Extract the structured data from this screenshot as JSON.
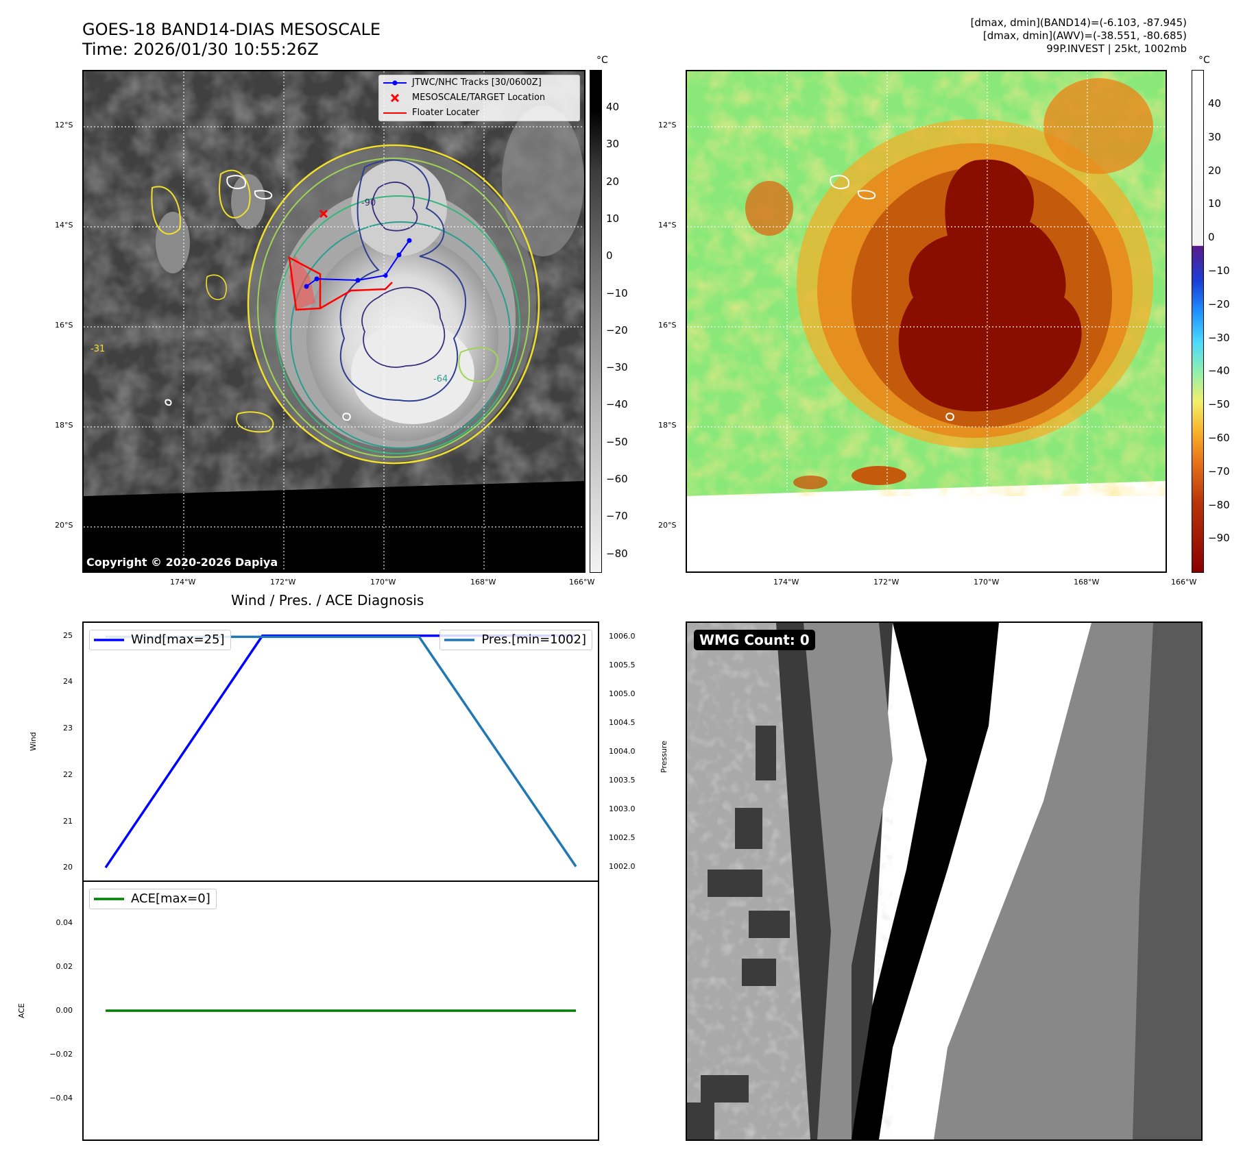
{
  "header": {
    "title_line1": "GOES-18 BAND14-DIAS MESOSCALE",
    "title_line2": "Time: 2026/01/30 10:55:26Z",
    "info_line1": "[dmax, dmin](BAND14)=(-6.103, -87.945)",
    "info_line2": "[dmax, dmin](AWV)=(-38.551, -80.685)",
    "info_line3": "99P.INVEST | 25kt, 1002mb"
  },
  "map": {
    "lat_labels": [
      "12°S",
      "14°S",
      "16°S",
      "18°S",
      "20°S"
    ],
    "lon_labels": [
      "174°W",
      "172°W",
      "170°W",
      "168°W",
      "166°W"
    ],
    "copyright": "Copyright © 2020-2026 Dapiya",
    "legend": {
      "tracks": "JTWC/NHC Tracks [30/0600Z]",
      "target": "MESOSCALE/TARGET Location",
      "floater": "Floater Locater"
    },
    "contour_labels": [
      "-31",
      "-64",
      "-90"
    ]
  },
  "colorbar_left": {
    "unit": "°C",
    "ticks": [
      "40",
      "30",
      "20",
      "10",
      "0",
      "−10",
      "−20",
      "−30",
      "−40",
      "−50",
      "−60",
      "−70",
      "−80"
    ]
  },
  "colorbar_right": {
    "unit": "°C",
    "ticks": [
      "40",
      "30",
      "20",
      "10",
      "0",
      "−10",
      "−20",
      "−30",
      "−40",
      "−50",
      "−60",
      "−70",
      "−80",
      "−90"
    ]
  },
  "diagnosis": {
    "title": "Wind / Pres. / ACE Diagnosis",
    "wind_label": "Wind",
    "pressure_label": "Pressure",
    "ace_label": "ACE",
    "legend_wind": "Wind[max=25]",
    "legend_pres": "Pres.[min=1002]",
    "legend_ace": "ACE[max=0]"
  },
  "wmg": {
    "label": "WMG Count: 0"
  },
  "colors": {
    "wind": "#0000ff",
    "pressure": "#1f77b4",
    "ace": "#008000",
    "track": "#0000ff",
    "target": "#ff0000"
  },
  "chart_data": [
    {
      "type": "line",
      "name": "wind-pressure",
      "x": [
        0,
        1,
        2,
        3
      ],
      "series": [
        {
          "name": "Wind[max=25]",
          "axis": "left",
          "values": [
            20,
            25,
            25,
            25
          ]
        },
        {
          "name": "Pres.[min=1002]",
          "axis": "right",
          "values": [
            1006,
            1006,
            1006,
            1002
          ]
        }
      ],
      "ylabel": "Wind",
      "ylabel_right": "Pressure",
      "ylim": [
        19.9,
        25.1
      ],
      "ylim_right": [
        1001.9,
        1006.1
      ],
      "yticks": [
        "20",
        "21",
        "22",
        "23",
        "24",
        "25"
      ],
      "yticks_right": [
        "1002.0",
        "1002.5",
        "1003.0",
        "1003.5",
        "1004.0",
        "1004.5",
        "1005.0",
        "1005.5",
        "1006.0"
      ]
    },
    {
      "type": "line",
      "name": "ace",
      "x": [
        0,
        1,
        2,
        3
      ],
      "series": [
        {
          "name": "ACE[max=0]",
          "values": [
            0,
            0,
            0,
            0
          ]
        }
      ],
      "ylabel": "ACE",
      "ylim": [
        -0.055,
        0.055
      ],
      "yticks": [
        "0.04",
        "0.02",
        "0.00",
        "−0.02",
        "−0.04"
      ]
    }
  ]
}
